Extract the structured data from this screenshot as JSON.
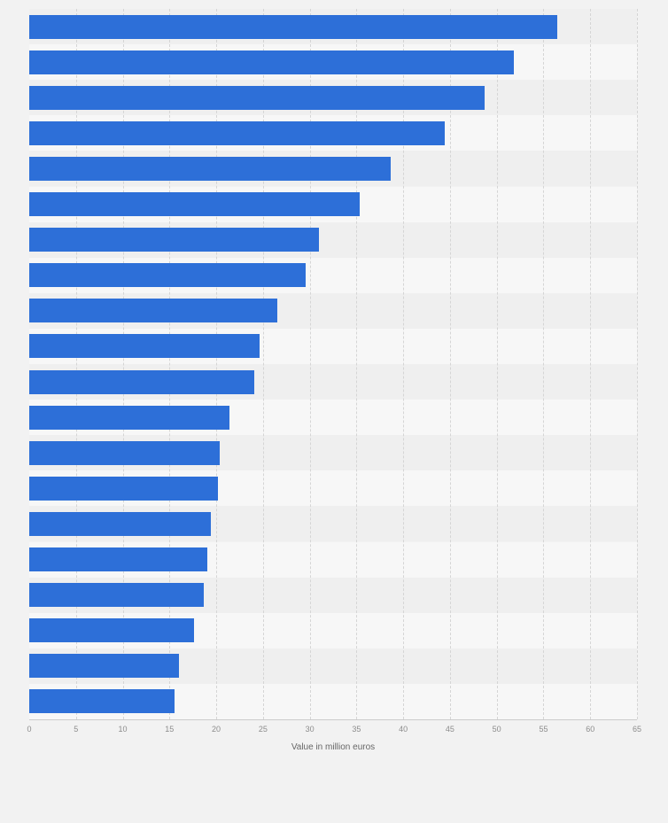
{
  "chart_data": {
    "type": "bar",
    "orientation": "horizontal",
    "title": "",
    "xlabel": "Value in million euros",
    "ylabel": "",
    "xlim": [
      0,
      65
    ],
    "xticks": [
      0,
      5,
      10,
      15,
      20,
      25,
      30,
      35,
      40,
      45,
      50,
      55,
      60,
      65
    ],
    "grid": "vertical-dashed",
    "legend": "none",
    "values": [
      56.5,
      51.8,
      48.7,
      44.4,
      38.7,
      35.3,
      31.0,
      29.6,
      26.5,
      24.6,
      24.1,
      21.4,
      20.4,
      20.2,
      19.4,
      19.0,
      18.7,
      17.6,
      16.0,
      15.5
    ],
    "bar_color": "#2d6fd8",
    "background_color": "#f2f2f2",
    "stripe_color_even": "#efefef",
    "stripe_color_odd": "#f7f7f7",
    "axis_line_color": "#cccccc",
    "gridline_color": "#d5d5d5"
  }
}
